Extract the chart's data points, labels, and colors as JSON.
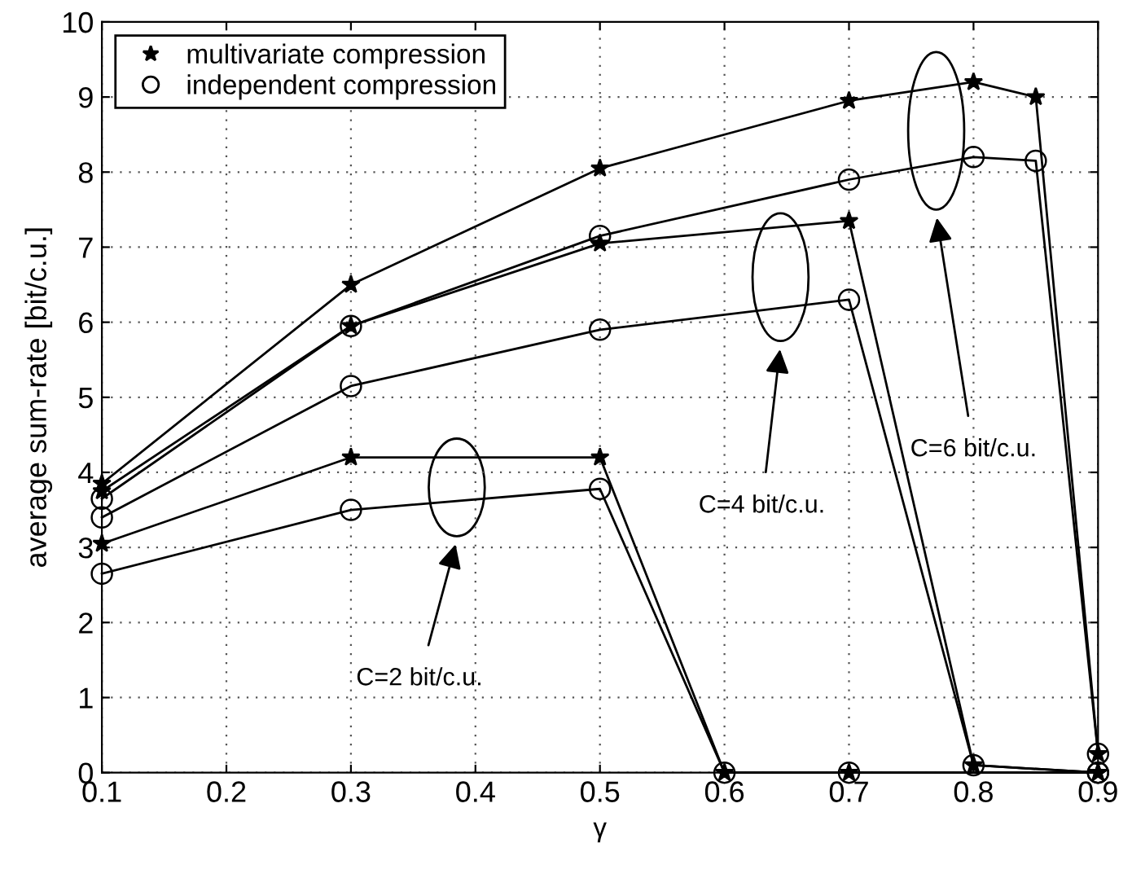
{
  "chart_data": {
    "type": "line",
    "xlabel": "γ",
    "ylabel": "average sum-rate [bit/c.u.]",
    "xlim": [
      0.1,
      0.9
    ],
    "ylim": [
      0,
      10
    ],
    "xticks": [
      0.1,
      0.2,
      0.3,
      0.4,
      0.5,
      0.6,
      0.7,
      0.8,
      0.9
    ],
    "yticks": [
      0,
      1,
      2,
      3,
      4,
      5,
      6,
      7,
      8,
      9,
      10
    ],
    "grid": true,
    "legend": "top left",
    "line_style": "solid",
    "series": [
      {
        "name": "multivariate compression",
        "color": "#000000",
        "marker": "star",
        "x": [
          0.1,
          0.3,
          0.5,
          0.7,
          0.8,
          0.85,
          0.9
        ],
        "values": [
          3.85,
          6.5,
          8.05,
          8.95,
          9.2,
          9.0,
          0.25
        ]
      },
      {
        "name": "independent compression",
        "color": "#000000",
        "marker": "circle",
        "x": [
          0.1,
          0.3,
          0.5,
          0.7,
          0.8,
          0.85,
          0.9
        ],
        "values": [
          3.65,
          5.95,
          7.15,
          7.9,
          8.2,
          8.15,
          0.25
        ]
      },
      {
        "color": "#000000",
        "marker": "star",
        "x": [
          0.1,
          0.3,
          0.5,
          0.7,
          0.8,
          0.9
        ],
        "values": [
          3.75,
          5.95,
          7.05,
          7.35,
          0.1,
          0
        ]
      },
      {
        "color": "#000000",
        "marker": "circle",
        "x": [
          0.1,
          0.3,
          0.5,
          0.7,
          0.8,
          0.9
        ],
        "values": [
          3.4,
          5.15,
          5.9,
          6.3,
          0.1,
          0
        ]
      },
      {
        "color": "#000000",
        "marker": "star",
        "x": [
          0.1,
          0.3,
          0.5,
          0.6,
          0.7,
          0.9
        ],
        "values": [
          3.05,
          4.2,
          4.2,
          0,
          0,
          0
        ]
      },
      {
        "color": "#000000",
        "marker": "circle",
        "x": [
          0.1,
          0.3,
          0.5,
          0.6,
          0.7,
          0.9
        ],
        "values": [
          2.65,
          3.5,
          3.78,
          0,
          0,
          0
        ]
      }
    ],
    "annotations": [
      "C=2 bit/c.u.",
      "C=4 bit/c.u.",
      "C=6 bit/c.u."
    ]
  }
}
